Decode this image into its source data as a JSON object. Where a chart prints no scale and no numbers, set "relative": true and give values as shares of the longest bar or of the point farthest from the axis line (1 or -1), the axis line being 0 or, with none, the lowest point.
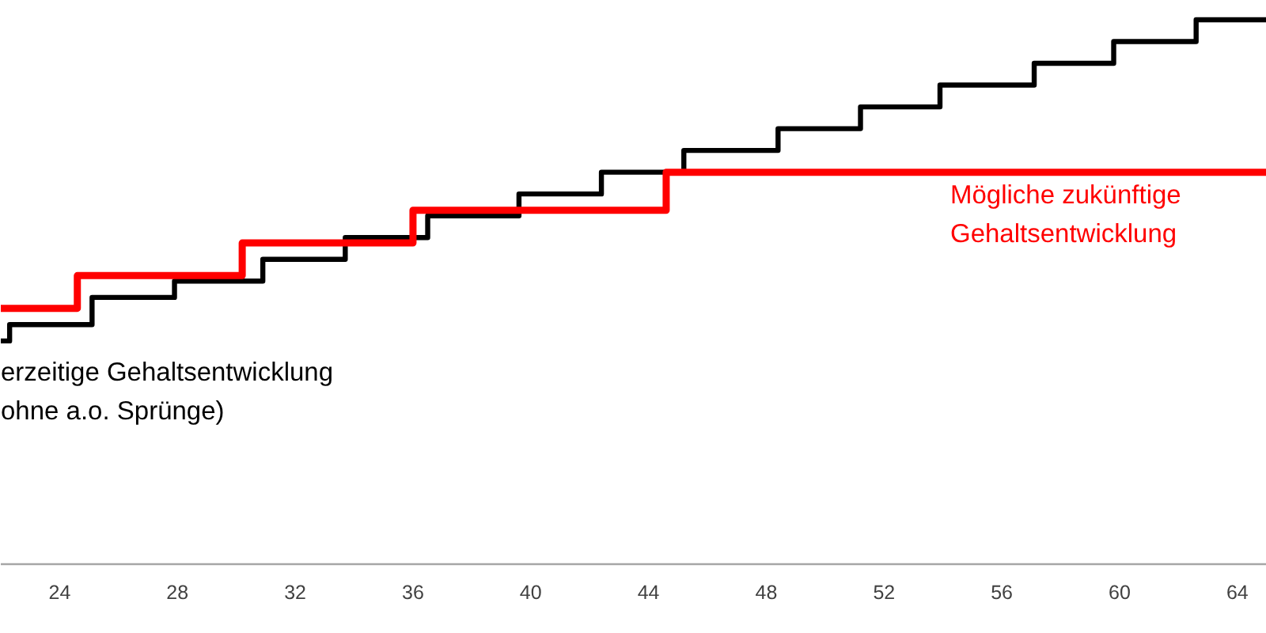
{
  "chart_data": {
    "type": "step",
    "relative": true,
    "xlim": [
      22,
      65
    ],
    "xticks": [
      24,
      28,
      32,
      36,
      40,
      44,
      48,
      52,
      56,
      60,
      64
    ],
    "tick_labels": "x",
    "series": [
      {
        "name": "erzeitige Gehaltsentwicklung\nohne a.o. Sprünge)",
        "color": "#000000",
        "x": [
          22.0,
          22.3,
          25.1,
          27.9,
          30.9,
          33.7,
          36.5,
          39.6,
          42.4,
          45.2,
          48.4,
          51.2,
          53.9,
          57.1,
          59.8,
          62.6,
          65.0
        ],
        "values": [
          0.41,
          0.44,
          0.49,
          0.52,
          0.56,
          0.6,
          0.64,
          0.68,
          0.72,
          0.76,
          0.8,
          0.84,
          0.88,
          0.92,
          0.96,
          1.0,
          1.0
        ]
      },
      {
        "name": "Mögliche zukünftige\nGehaltsentwicklung",
        "color": "#ff0000",
        "x": [
          22.0,
          24.6,
          30.2,
          36.0,
          44.6,
          65.0
        ],
        "values": [
          0.47,
          0.53,
          0.59,
          0.65,
          0.72,
          0.72
        ]
      }
    ]
  }
}
